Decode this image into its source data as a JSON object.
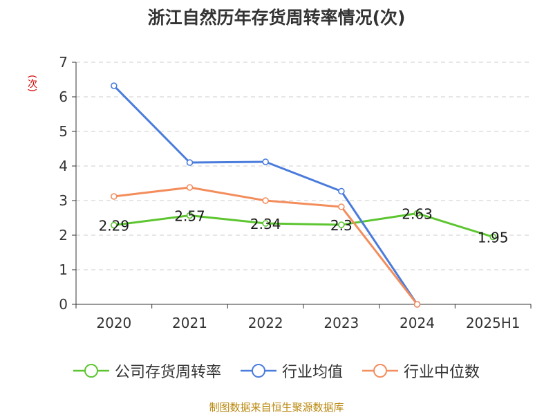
{
  "chart_data": {
    "type": "line",
    "title": "浙江自然历年存货周转率情况(次)",
    "ylabel": "(次)",
    "categories": [
      "2020",
      "2021",
      "2022",
      "2023",
      "2024",
      "2025H1"
    ],
    "ylim": [
      0,
      7
    ],
    "yticks": [
      0,
      1,
      2,
      3,
      4,
      5,
      6,
      7
    ],
    "grid": true,
    "legend_position": "bottom",
    "series": [
      {
        "name": "公司存货周转率",
        "color": "#5cc530",
        "values": [
          2.29,
          2.57,
          2.34,
          2.3,
          2.63,
          1.95
        ],
        "labels": [
          "2.29",
          "2.57",
          "2.34",
          "2.3",
          "2.63",
          "1.95"
        ]
      },
      {
        "name": "行业均值",
        "color": "#4a7cdc",
        "values": [
          6.32,
          4.1,
          4.12,
          3.27,
          0,
          null
        ]
      },
      {
        "name": "行业中位数",
        "color": "#f38d5c",
        "values": [
          3.12,
          3.38,
          3.0,
          2.82,
          0,
          null
        ]
      }
    ]
  },
  "source": "制图数据来自恒生聚源数据库"
}
